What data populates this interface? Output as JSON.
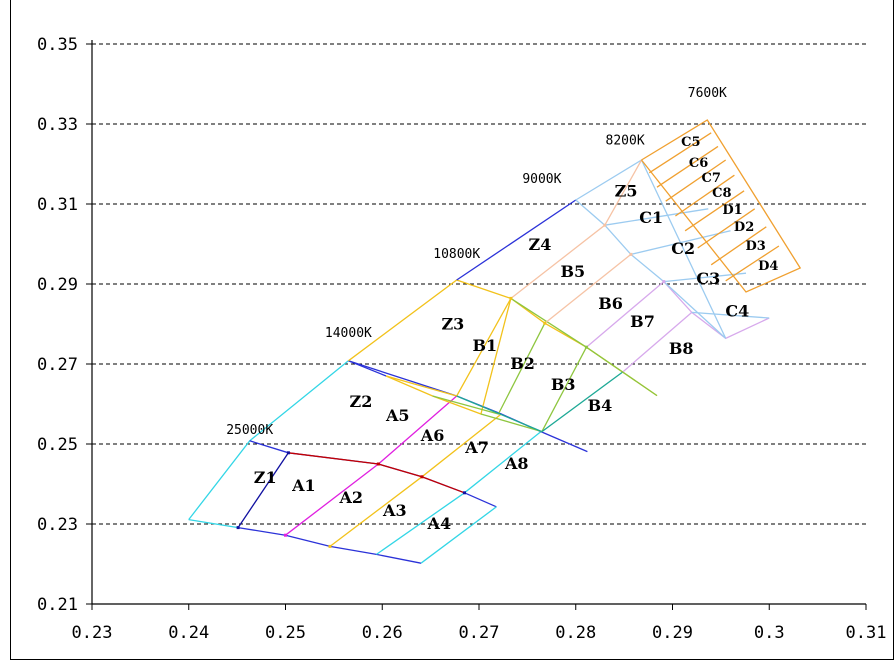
{
  "chart_data": {
    "type": "line",
    "title": "",
    "xlabel": "",
    "ylabel": "",
    "xlim": [
      0.23,
      0.31
    ],
    "ylim": [
      0.21,
      0.35
    ],
    "grid": "horizontal dashed",
    "x_ticks": [
      "0.23",
      "0.24",
      "0.25",
      "0.26",
      "0.27",
      "0.28",
      "0.29",
      "0.3",
      "0.31"
    ],
    "y_ticks": [
      "0.21",
      "0.23",
      "0.25",
      "0.27",
      "0.29",
      "0.31",
      "0.33",
      "0.35"
    ],
    "colors": {
      "orange": "#f0a030",
      "lightblue": "#9ccbf0",
      "peach": "#f6c3a5",
      "lavender": "#d7a9ec",
      "blue": "#2b32d8",
      "gold": "#f2c21b",
      "red": "#c40000",
      "olive": "#8ec63f",
      "teal": "#1ea996",
      "magenta": "#e020e0",
      "cyan": "#33d6e6",
      "navy": "#1010a0"
    },
    "cct_labels": [
      {
        "text": "25000K",
        "x": 0.2463,
        "y": 0.2525
      },
      {
        "text": "14000K",
        "x": 0.2565,
        "y": 0.2768
      },
      {
        "text": "10800K",
        "x": 0.2677,
        "y": 0.2965
      },
      {
        "text": "9000K",
        "x": 0.2765,
        "y": 0.3152
      },
      {
        "text": "8200K",
        "x": 0.2851,
        "y": 0.3249
      },
      {
        "text": "7600K",
        "x": 0.2936,
        "y": 0.3368
      }
    ],
    "bin_labels": [
      {
        "text": "Z1",
        "x": 0.2479,
        "y": 0.2403
      },
      {
        "text": "A1",
        "x": 0.2519,
        "y": 0.2383
      },
      {
        "text": "A2",
        "x": 0.2568,
        "y": 0.2352
      },
      {
        "text": "A3",
        "x": 0.2613,
        "y": 0.232
      },
      {
        "text": "A4",
        "x": 0.2659,
        "y": 0.2287
      },
      {
        "text": "Z2",
        "x": 0.2578,
        "y": 0.2593
      },
      {
        "text": "A5",
        "x": 0.2616,
        "y": 0.2558
      },
      {
        "text": "A6",
        "x": 0.2652,
        "y": 0.2508
      },
      {
        "text": "A7",
        "x": 0.2698,
        "y": 0.2477
      },
      {
        "text": "A8",
        "x": 0.2739,
        "y": 0.2437
      },
      {
        "text": "Z3",
        "x": 0.2673,
        "y": 0.2786
      },
      {
        "text": "B1",
        "x": 0.2706,
        "y": 0.2732
      },
      {
        "text": "B2",
        "x": 0.2745,
        "y": 0.2687
      },
      {
        "text": "B3",
        "x": 0.2787,
        "y": 0.2635
      },
      {
        "text": "B4",
        "x": 0.2825,
        "y": 0.2582
      },
      {
        "text": "Z4",
        "x": 0.2763,
        "y": 0.2985
      },
      {
        "text": "B5",
        "x": 0.2797,
        "y": 0.2918
      },
      {
        "text": "B6",
        "x": 0.2836,
        "y": 0.2838
      },
      {
        "text": "B7",
        "x": 0.2869,
        "y": 0.2792
      },
      {
        "text": "B8",
        "x": 0.2909,
        "y": 0.2725
      },
      {
        "text": "Z5",
        "x": 0.2852,
        "y": 0.3119
      },
      {
        "text": "C1",
        "x": 0.2878,
        "y": 0.3053
      },
      {
        "text": "C2",
        "x": 0.2911,
        "y": 0.2975
      },
      {
        "text": "C3",
        "x": 0.2937,
        "y": 0.29
      },
      {
        "text": "C4",
        "x": 0.2967,
        "y": 0.2819
      },
      {
        "text": "C5",
        "x": 0.2919,
        "y": 0.3245
      },
      {
        "text": "C6",
        "x": 0.2927,
        "y": 0.3193
      },
      {
        "text": "C7",
        "x": 0.294,
        "y": 0.3155
      },
      {
        "text": "C8",
        "x": 0.2951,
        "y": 0.3118
      },
      {
        "text": "D1",
        "x": 0.2962,
        "y": 0.3075
      },
      {
        "text": "D2",
        "x": 0.2974,
        "y": 0.3033
      },
      {
        "text": "D3",
        "x": 0.2986,
        "y": 0.2985
      },
      {
        "text": "D4",
        "x": 0.2999,
        "y": 0.2935
      }
    ],
    "series": [
      {
        "color": "cyan",
        "x": [
          0.24,
          0.2463,
          0.2565
        ],
        "y": [
          0.2311,
          0.2508,
          0.2708
        ]
      },
      {
        "color": "navy",
        "x": [
          0.2451,
          0.2503
        ],
        "y": [
          0.2291,
          0.2478
        ]
      },
      {
        "color": "cyan",
        "x": [
          0.24,
          0.2451
        ],
        "y": [
          0.2311,
          0.2291
        ]
      },
      {
        "color": "blue",
        "x": [
          0.2451,
          0.25,
          0.2546,
          0.2594,
          0.264
        ],
        "y": [
          0.2291,
          0.2272,
          0.2244,
          0.2224,
          0.2202
        ]
      },
      {
        "color": "blue",
        "x": [
          0.2463,
          0.2503,
          0.2596,
          0.2641,
          0.2685,
          0.2718
        ],
        "y": [
          0.2508,
          0.2478,
          0.245,
          0.2418,
          0.2378,
          0.2343
        ]
      },
      {
        "color": "red",
        "x": [
          0.2503,
          0.2596,
          0.2641,
          0.2685
        ],
        "y": [
          0.2478,
          0.245,
          0.2418,
          0.2378
        ]
      },
      {
        "color": "magenta",
        "x": [
          0.25,
          0.2596,
          0.2677
        ],
        "y": [
          0.2272,
          0.245,
          0.262
        ]
      },
      {
        "color": "gold",
        "x": [
          0.2546,
          0.2641,
          0.2723
        ],
        "y": [
          0.2244,
          0.2418,
          0.2575
        ]
      },
      {
        "color": "cyan",
        "x": [
          0.2594,
          0.2685,
          0.2764
        ],
        "y": [
          0.2224,
          0.2378,
          0.2531
        ]
      },
      {
        "color": "cyan",
        "x": [
          0.264,
          0.2718
        ],
        "y": [
          0.2202,
          0.2343
        ]
      },
      {
        "color": "blue",
        "x": [
          0.2565,
          0.2677,
          0.2723,
          0.2764,
          0.2812
        ],
        "y": [
          0.2708,
          0.262,
          0.2575,
          0.2531,
          0.2481
        ]
      },
      {
        "color": "blue",
        "x": [
          0.2565,
          0.2604
        ],
        "y": [
          0.2708,
          0.267
        ]
      },
      {
        "color": "gold",
        "x": [
          0.2565,
          0.2677,
          0.2733
        ],
        "y": [
          0.2708,
          0.291,
          0.2864
        ]
      },
      {
        "color": "gold",
        "x": [
          0.2604,
          0.2652,
          0.2702,
          0.2733
        ],
        "y": [
          0.267,
          0.262,
          0.2575,
          0.2864
        ]
      },
      {
        "color": "gold",
        "x": [
          0.2604,
          0.2677,
          0.2733,
          0.2768,
          0.2811,
          0.2884
        ],
        "y": [
          0.267,
          0.262,
          0.2864,
          0.2802,
          0.2742,
          0.2621
        ]
      },
      {
        "color": "olive",
        "x": [
          0.2652,
          0.272,
          0.2768
        ],
        "y": [
          0.262,
          0.2575,
          0.2802
        ]
      },
      {
        "color": "olive",
        "x": [
          0.2702,
          0.2765,
          0.2811
        ],
        "y": [
          0.2575,
          0.2531,
          0.2742
        ]
      },
      {
        "color": "teal",
        "x": [
          0.2677,
          0.2765,
          0.2849
        ],
        "y": [
          0.262,
          0.2531,
          0.2681
        ]
      },
      {
        "color": "olive",
        "x": [
          0.2733,
          0.2811,
          0.2884
        ],
        "y": [
          0.2864,
          0.2742,
          0.2621
        ]
      },
      {
        "color": "blue",
        "x": [
          0.2677,
          0.28
        ],
        "y": [
          0.291,
          0.311
        ]
      },
      {
        "color": "lightblue",
        "x": [
          0.28,
          0.2868,
          0.2955
        ],
        "y": [
          0.311,
          0.321,
          0.2764
        ]
      },
      {
        "color": "peach",
        "x": [
          0.2733,
          0.283,
          0.2868
        ],
        "y": [
          0.2864,
          0.3047,
          0.321
        ]
      },
      {
        "color": "peach",
        "x": [
          0.2768,
          0.2857
        ],
        "y": [
          0.2802,
          0.2974
        ]
      },
      {
        "color": "lavender",
        "x": [
          0.2811,
          0.2891,
          0.292,
          0.2955,
          0.3
        ],
        "y": [
          0.2742,
          0.2906,
          0.2829,
          0.2764,
          0.2815
        ]
      },
      {
        "color": "lavender",
        "x": [
          0.2849,
          0.292
        ],
        "y": [
          0.2681,
          0.2829
        ]
      },
      {
        "color": "lightblue",
        "x": [
          0.28,
          0.283,
          0.2857,
          0.2891,
          0.2955
        ],
        "y": [
          0.311,
          0.3047,
          0.2974,
          0.2906,
          0.2764
        ]
      },
      {
        "color": "lightblue",
        "x": [
          0.283,
          0.2937
        ],
        "y": [
          0.3047,
          0.3088
        ]
      },
      {
        "color": "lightblue",
        "x": [
          0.2857,
          0.296
        ],
        "y": [
          0.2974,
          0.3033
        ]
      },
      {
        "color": "lightblue",
        "x": [
          0.2891,
          0.2976
        ],
        "y": [
          0.2906,
          0.2927
        ]
      },
      {
        "color": "lightblue",
        "x": [
          0.292,
          0.3
        ],
        "y": [
          0.2829,
          0.2815
        ]
      },
      {
        "color": "orange",
        "x": [
          0.2868,
          0.2936,
          0.3032,
          0.2976,
          0.2868
        ],
        "y": [
          0.321,
          0.331,
          0.294,
          0.288,
          0.321
        ]
      },
      {
        "color": "orange",
        "x": [
          0.2876,
          0.294
        ],
        "y": [
          0.3178,
          0.3278
        ]
      },
      {
        "color": "orange",
        "x": [
          0.2884,
          0.2947
        ],
        "y": [
          0.3142,
          0.3244
        ]
      },
      {
        "color": "orange",
        "x": [
          0.2893,
          0.2955
        ],
        "y": [
          0.3107,
          0.321
        ]
      },
      {
        "color": "orange",
        "x": [
          0.2903,
          0.2964
        ],
        "y": [
          0.307,
          0.3172
        ]
      },
      {
        "color": "orange",
        "x": [
          0.2913,
          0.2974
        ],
        "y": [
          0.3033,
          0.3133
        ]
      },
      {
        "color": "orange",
        "x": [
          0.2926,
          0.2985
        ],
        "y": [
          0.299,
          0.3088
        ]
      },
      {
        "color": "orange",
        "x": [
          0.294,
          0.2997
        ],
        "y": [
          0.2948,
          0.3043
        ]
      },
      {
        "color": "orange",
        "x": [
          0.2955,
          0.301
        ],
        "y": [
          0.2908,
          0.2995
        ]
      }
    ],
    "markers": [
      {
        "x": 0.2451,
        "y": 0.2291,
        "color": "navy"
      },
      {
        "x": 0.2503,
        "y": 0.2478,
        "color": "navy"
      },
      {
        "x": 0.2596,
        "y": 0.245,
        "color": "red"
      },
      {
        "x": 0.2641,
        "y": 0.2418,
        "color": "red"
      },
      {
        "x": 0.2685,
        "y": 0.2378,
        "color": "navy"
      },
      {
        "x": 0.2546,
        "y": 0.2244,
        "color": "gold"
      },
      {
        "x": 0.25,
        "y": 0.2272,
        "color": "magenta"
      },
      {
        "x": 0.2733,
        "y": 0.2864,
        "color": "gold"
      },
      {
        "x": 0.2768,
        "y": 0.2802,
        "color": "gold"
      },
      {
        "x": 0.2811,
        "y": 0.2742,
        "color": "olive"
      },
      {
        "x": 0.283,
        "y": 0.3047,
        "color": "peach"
      },
      {
        "x": 0.2857,
        "y": 0.2974,
        "color": "peach"
      },
      {
        "x": 0.2891,
        "y": 0.2906,
        "color": "lavender"
      }
    ]
  }
}
